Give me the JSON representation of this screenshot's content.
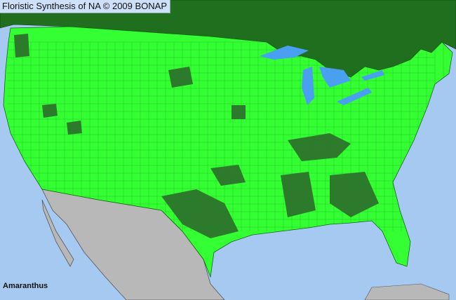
{
  "header": {
    "title": "Floristic Synthesis of NA © 2009 BONAP"
  },
  "map": {
    "taxon": "Amaranthus",
    "colors": {
      "ocean": "#a6c9f2",
      "canada": "#1f6f1f",
      "us_present": "#33ff33",
      "us_county_dense": "#2d7a2d",
      "mexico": "#b8b8b8",
      "lakes": "#4aa0f0"
    }
  }
}
